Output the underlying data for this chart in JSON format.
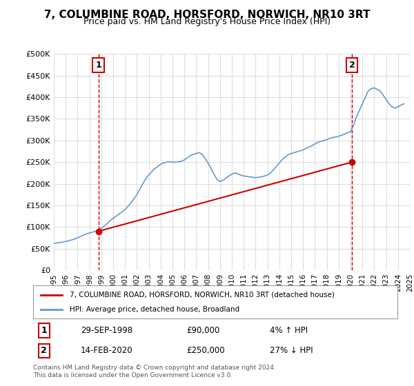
{
  "title": "7, COLUMBINE ROAD, HORSFORD, NORWICH, NR10 3RT",
  "subtitle": "Price paid vs. HM Land Registry's House Price Index (HPI)",
  "xlabel": "",
  "ylabel": "",
  "ylim": [
    0,
    500000
  ],
  "yticks": [
    0,
    50000,
    100000,
    150000,
    200000,
    250000,
    300000,
    350000,
    400000,
    450000,
    500000
  ],
  "ytick_labels": [
    "£0",
    "£50K",
    "£100K",
    "£150K",
    "£200K",
    "£250K",
    "£300K",
    "£350K",
    "£400K",
    "£450K",
    "£500K"
  ],
  "background_color": "#ffffff",
  "grid_color": "#dddddd",
  "sale1_date": "1998-09-29",
  "sale1_price": 90000,
  "sale1_label": "1",
  "sale2_date": "2020-02-14",
  "sale2_price": 250000,
  "sale2_label": "2",
  "property_line_color": "#cc0000",
  "hpi_line_color": "#6699cc",
  "legend_property": "7, COLUMBINE ROAD, HORSFORD, NORWICH, NR10 3RT (detached house)",
  "legend_hpi": "HPI: Average price, detached house, Broadland",
  "table_row1": [
    "1",
    "29-SEP-1998",
    "£90,000",
    "4% ↑ HPI"
  ],
  "table_row2": [
    "2",
    "14-FEB-2020",
    "£250,000",
    "27% ↓ HPI"
  ],
  "footer": "Contains HM Land Registry data © Crown copyright and database right 2024.\nThis data is licensed under the Open Government Licence v3.0.",
  "hpi_data_x": [
    1995.0,
    1995.25,
    1995.5,
    1995.75,
    1996.0,
    1996.25,
    1996.5,
    1996.75,
    1997.0,
    1997.25,
    1997.5,
    1997.75,
    1998.0,
    1998.25,
    1998.5,
    1998.75,
    1999.0,
    1999.25,
    1999.5,
    1999.75,
    2000.0,
    2000.25,
    2000.5,
    2000.75,
    2001.0,
    2001.25,
    2001.5,
    2001.75,
    2002.0,
    2002.25,
    2002.5,
    2002.75,
    2003.0,
    2003.25,
    2003.5,
    2003.75,
    2004.0,
    2004.25,
    2004.5,
    2004.75,
    2005.0,
    2005.25,
    2005.5,
    2005.75,
    2006.0,
    2006.25,
    2006.5,
    2006.75,
    2007.0,
    2007.25,
    2007.5,
    2007.75,
    2008.0,
    2008.25,
    2008.5,
    2008.75,
    2009.0,
    2009.25,
    2009.5,
    2009.75,
    2010.0,
    2010.25,
    2010.5,
    2010.75,
    2011.0,
    2011.25,
    2011.5,
    2011.75,
    2012.0,
    2012.25,
    2012.5,
    2012.75,
    2013.0,
    2013.25,
    2013.5,
    2013.75,
    2014.0,
    2014.25,
    2014.5,
    2014.75,
    2015.0,
    2015.25,
    2015.5,
    2015.75,
    2016.0,
    2016.25,
    2016.5,
    2016.75,
    2017.0,
    2017.25,
    2017.5,
    2017.75,
    2018.0,
    2018.25,
    2018.5,
    2018.75,
    2019.0,
    2019.25,
    2019.5,
    2019.75,
    2020.0,
    2020.25,
    2020.5,
    2020.75,
    2021.0,
    2021.25,
    2021.5,
    2021.75,
    2022.0,
    2022.25,
    2022.5,
    2022.75,
    2023.0,
    2023.25,
    2023.5,
    2023.75,
    2024.0,
    2024.25,
    2024.5
  ],
  "hpi_data_y": [
    62000,
    63000,
    64000,
    65000,
    66500,
    68000,
    70000,
    72000,
    75000,
    78000,
    81000,
    84000,
    86000,
    88000,
    90000,
    93000,
    97000,
    102000,
    108000,
    115000,
    120000,
    125000,
    130000,
    135000,
    140000,
    148000,
    156000,
    165000,
    175000,
    188000,
    200000,
    212000,
    220000,
    228000,
    235000,
    240000,
    245000,
    248000,
    250000,
    251000,
    250000,
    250000,
    251000,
    252000,
    255000,
    260000,
    265000,
    268000,
    270000,
    272000,
    268000,
    258000,
    248000,
    235000,
    222000,
    210000,
    205000,
    208000,
    213000,
    218000,
    222000,
    225000,
    223000,
    220000,
    218000,
    217000,
    216000,
    215000,
    214000,
    215000,
    216000,
    218000,
    220000,
    225000,
    232000,
    240000,
    248000,
    256000,
    262000,
    267000,
    270000,
    272000,
    274000,
    276000,
    278000,
    282000,
    285000,
    288000,
    292000,
    296000,
    298000,
    300000,
    302000,
    305000,
    307000,
    308000,
    310000,
    312000,
    315000,
    318000,
    320000,
    335000,
    355000,
    370000,
    385000,
    400000,
    415000,
    420000,
    422000,
    418000,
    415000,
    405000,
    395000,
    385000,
    378000,
    375000,
    378000,
    382000,
    385000
  ],
  "property_data_x": [
    1998.75,
    2020.12
  ],
  "property_data_y": [
    90000,
    250000
  ],
  "sale1_x": 1998.75,
  "sale2_x": 2020.12,
  "xlim_left": 1995.0,
  "xlim_right": 2025.0,
  "xticks": [
    1995,
    1996,
    1997,
    1998,
    1999,
    2000,
    2001,
    2002,
    2003,
    2004,
    2005,
    2006,
    2007,
    2008,
    2009,
    2010,
    2011,
    2012,
    2013,
    2014,
    2015,
    2016,
    2017,
    2018,
    2019,
    2020,
    2021,
    2022,
    2023,
    2024,
    2025
  ]
}
